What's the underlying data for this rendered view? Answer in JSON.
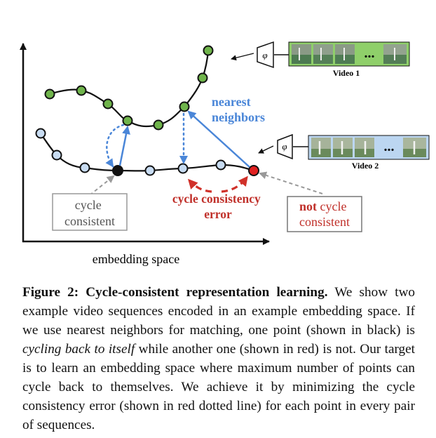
{
  "figure": {
    "axis_label": "embedding space",
    "video1_label": "Video 1",
    "video2_label": "Video 2",
    "phi_symbol": "φ",
    "ellipsis": "...",
    "nearest_neighbors_line1": "nearest",
    "nearest_neighbors_line2": "neighbors",
    "cycle_consistent_line1": "cycle",
    "cycle_consistent_line2": "consistent",
    "cycle_error_line1": "cycle consistency",
    "cycle_error_line2": "error",
    "not_consistent_not": "not",
    "not_consistent_cycle": "cycle",
    "not_consistent_line2": "consistent",
    "colors": {
      "video1_points": "#6fb44b",
      "video2_points": "#c8dcf2",
      "neighbor_arrow": "#4a86d8",
      "error": "#d0312a",
      "guide_arrow": "#999999"
    }
  },
  "caption": {
    "label": "Figure 2: Cycle-consistent representation learning.",
    "line1_rest": "We show",
    "line2": "two example video sequences encoded in an example embedding",
    "line3": "space. If we use nearest neighbors for matching, one point (shown",
    "line4_pre": "in black) is",
    "line4_em": "cycling back to itself",
    "line4_post": "while another one (shown in red)",
    "line5": "is not. Our target is to learn an embedding space where maximum",
    "line6": "number of points can cycle back to themselves. We achieve it by",
    "line7": "minimizing the cycle consistency error (shown in red dotted line)",
    "line8": "for each point in every pair of sequences."
  }
}
